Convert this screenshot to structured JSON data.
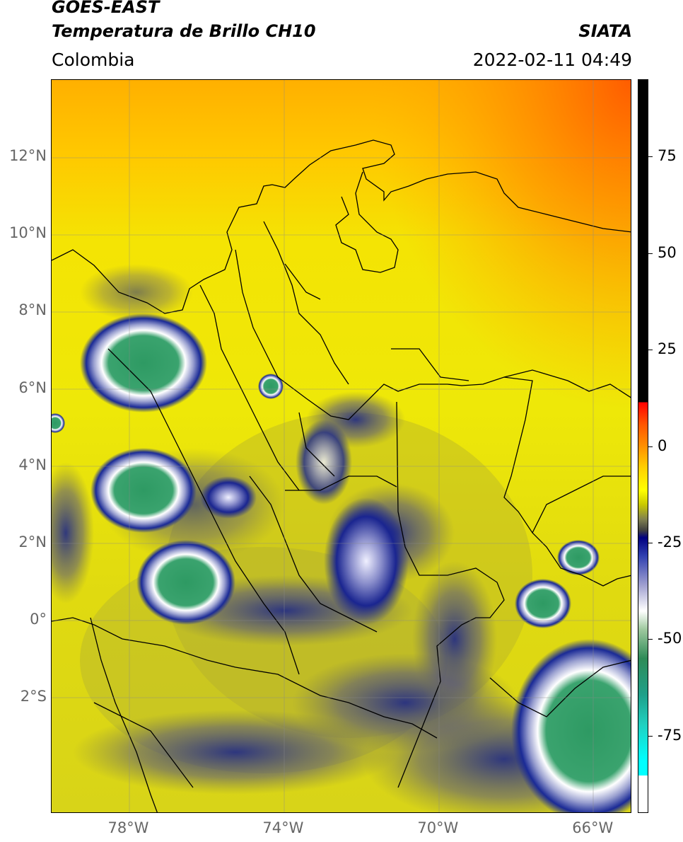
{
  "header": {
    "line1": "GOES-EAST",
    "line2": "Temperatura de Brillo CH10",
    "agency": "SIATA",
    "region": "Colombia",
    "datetime": "2022-02-11 04:49"
  },
  "map": {
    "lat_labels": [
      {
        "text": "12°N",
        "value": 12
      },
      {
        "text": "10°N",
        "value": 10
      },
      {
        "text": "8°N",
        "value": 8
      },
      {
        "text": "6°N",
        "value": 6
      },
      {
        "text": "4°N",
        "value": 4
      },
      {
        "text": "2°N",
        "value": 2
      },
      {
        "text": "0°",
        "value": 0
      },
      {
        "text": "2°S",
        "value": -2
      }
    ],
    "lon_labels": [
      {
        "text": "78°W",
        "value": -78
      },
      {
        "text": "74°W",
        "value": -74
      },
      {
        "text": "70°W",
        "value": -70
      },
      {
        "text": "66°W",
        "value": -66
      }
    ],
    "lon_range": [
      -80,
      -65
    ],
    "lat_range": [
      -5,
      14
    ],
    "colors": {
      "background": "#f1e806",
      "warm_north": "#ffc000",
      "hot_corner": "#ff6a00",
      "cloud_blue": "#14208a",
      "cloud_white": "#ffffff",
      "cold_green": "#2e9a63",
      "border": "#000000",
      "grid": "#8a8a8a"
    }
  },
  "colorbar": {
    "tick_labels": [
      {
        "text": "75",
        "value": 75
      },
      {
        "text": "50",
        "value": 50
      },
      {
        "text": "25",
        "value": 25
      },
      {
        "text": "0",
        "value": 0
      },
      {
        "text": "-25",
        "value": -25
      },
      {
        "text": "-50",
        "value": -50
      },
      {
        "text": "-75",
        "value": -75
      }
    ],
    "range": [
      -95,
      95
    ]
  }
}
